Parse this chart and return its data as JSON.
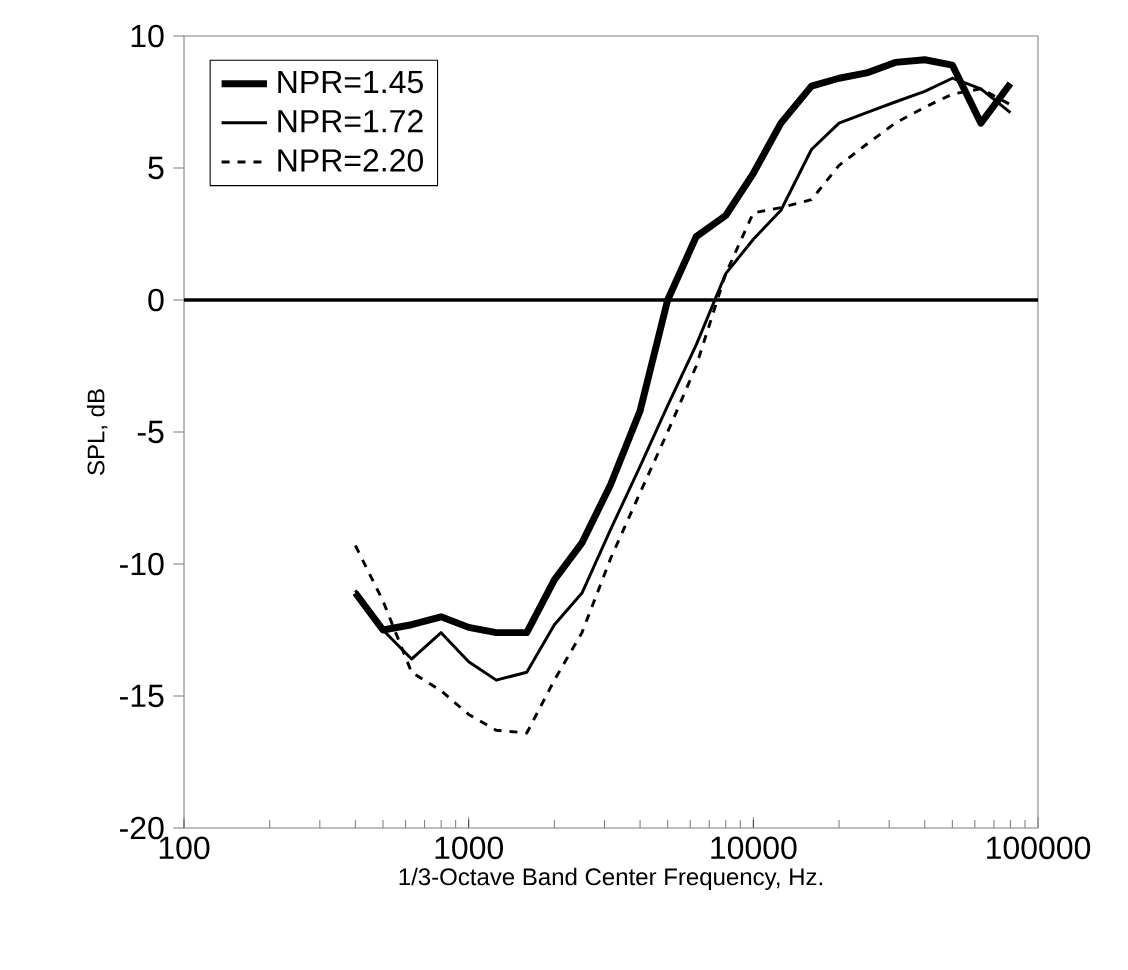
{
  "chart_data": {
    "type": "line",
    "xlabel": "1/3-Octave Band Center Frequency, Hz.",
    "ylabel": "SPL, dB",
    "x": [
      400,
      500,
      630,
      800,
      1000,
      1250,
      1600,
      2000,
      2500,
      3150,
      4000,
      5000,
      6300,
      8000,
      10000,
      12500,
      16000,
      20000,
      25000,
      31500,
      40000,
      50000,
      63000,
      80000
    ],
    "series": [
      {
        "name": "NPR=1.45",
        "color": "#000000",
        "line_style": "solid",
        "values": [
          -11.1,
          -12.5,
          -12.3,
          -12.0,
          -12.4,
          -12.6,
          -12.6,
          -10.6,
          -9.2,
          -7.0,
          -4.2,
          0.0,
          2.4,
          3.2,
          4.8,
          6.7,
          8.1,
          8.4,
          8.6,
          9.0,
          9.1,
          8.9,
          6.7,
          8.2
        ]
      },
      {
        "name": "NPR=1.72",
        "color": "#000000",
        "line_style": "solid",
        "values": [
          -11.0,
          -12.5,
          -13.6,
          -12.6,
          -13.7,
          -14.4,
          -14.1,
          -12.3,
          -11.1,
          -8.7,
          -6.3,
          -4.0,
          -1.7,
          1.0,
          2.3,
          3.4,
          5.7,
          6.7,
          7.1,
          7.5,
          7.9,
          8.4,
          8.0,
          7.1
        ]
      },
      {
        "name": "NPR=2.20",
        "color": "#000000",
        "line_style": "dashed",
        "values": [
          -9.3,
          -11.4,
          -14.1,
          -14.8,
          -15.7,
          -16.3,
          -16.4,
          -14.4,
          -12.6,
          -9.8,
          -7.3,
          -5.0,
          -2.5,
          1.0,
          3.3,
          3.5,
          3.8,
          5.1,
          5.9,
          6.7,
          7.3,
          7.8,
          8.0,
          7.4
        ]
      }
    ],
    "log": "x",
    "xlim": [
      100,
      100000
    ],
    "ylim": [
      -20,
      10
    ],
    "xticks": [
      100,
      1000,
      10000,
      100000
    ],
    "yticks": [
      -20,
      -15,
      -10,
      -5,
      0,
      5,
      10
    ],
    "ref_lines": [
      {
        "axis": "y",
        "value": 0,
        "color": "#000000"
      }
    ],
    "grid": false,
    "legend": "top left",
    "marker": "none"
  }
}
